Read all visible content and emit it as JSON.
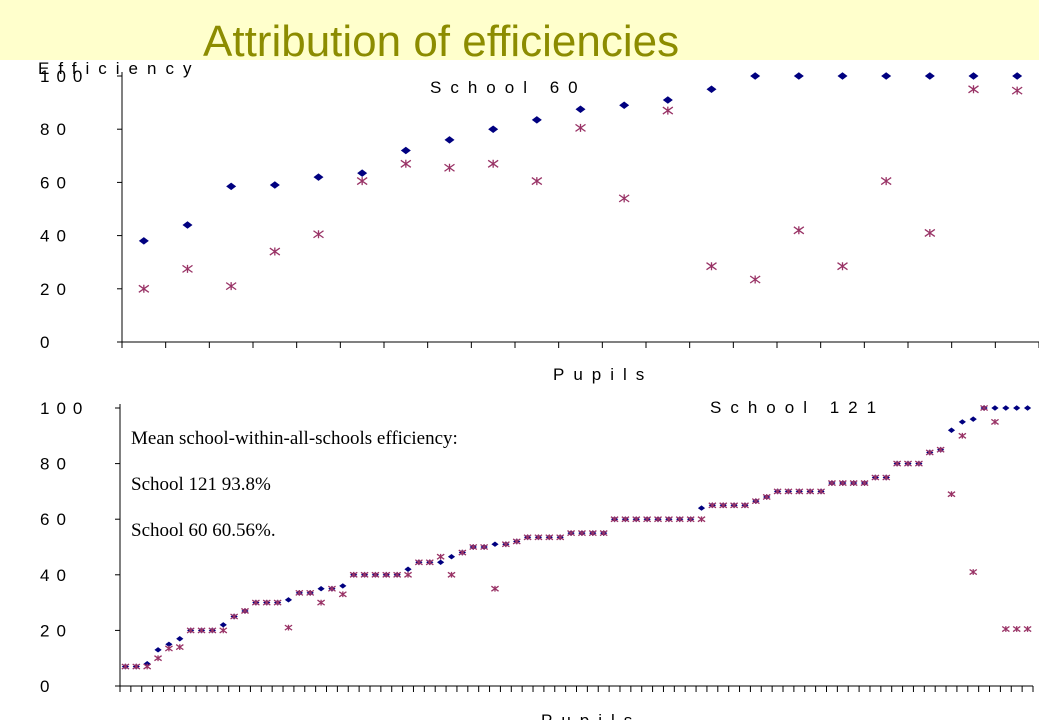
{
  "title": "Attribution of efficiencies",
  "chart_data": [
    {
      "type": "scatter",
      "title": "School 60",
      "xlabel": "Pupils",
      "ylabel": "Efficiency",
      "categories": [
        null,
        null,
        null,
        null,
        null,
        null,
        null,
        null,
        null,
        null,
        null,
        null,
        null,
        null,
        null,
        null,
        null,
        null,
        null,
        null,
        null
      ],
      "ylim": [
        0,
        100
      ],
      "yticks": [
        0,
        20,
        40,
        60,
        80,
        100
      ],
      "series": [
        {
          "color": "#000080",
          "marker": "diamond",
          "values": [
            38,
            44,
            58.5,
            59,
            62,
            63.5,
            72,
            76,
            80,
            83.5,
            87.5,
            89,
            91,
            95,
            100,
            100,
            100,
            100,
            100,
            100,
            100
          ]
        },
        {
          "color": "#993366",
          "marker": "star",
          "values": [
            20,
            27.5,
            21,
            34,
            40.5,
            60.5,
            67,
            65.5,
            67,
            60.5,
            80.5,
            54,
            87,
            28.5,
            23.5,
            42,
            28.5,
            60.5,
            41,
            95,
            94.5
          ]
        }
      ]
    },
    {
      "type": "scatter",
      "title": "School 121",
      "xlabel": "Pupils",
      "categories": [
        null,
        null,
        null,
        null,
        null,
        null,
        null,
        null,
        null,
        null,
        null,
        null,
        null,
        null,
        null,
        null,
        null,
        null,
        null,
        null,
        null,
        null,
        null,
        null,
        null,
        null,
        null,
        null,
        null,
        null,
        null,
        null,
        null,
        null,
        null,
        null,
        null,
        null,
        null,
        null,
        null,
        null,
        null,
        null,
        null,
        null,
        null,
        null,
        null,
        null,
        null,
        null,
        null,
        null,
        null,
        null,
        null,
        null,
        null,
        null,
        null,
        null,
        null,
        null,
        null,
        null,
        null,
        null,
        null,
        null,
        null,
        null,
        null,
        null,
        null,
        null,
        null,
        null,
        null,
        null,
        null,
        null,
        null,
        null
      ],
      "ylim": [
        0,
        100
      ],
      "yticks": [
        0,
        20,
        40,
        60,
        80,
        100
      ],
      "series": [
        {
          "color": "#000080",
          "marker": "diamond",
          "values": [
            7,
            7,
            8,
            13,
            15,
            17,
            20,
            20,
            20,
            22,
            25,
            27,
            30,
            30,
            30,
            31,
            33.5,
            33.5,
            35,
            35,
            36,
            40,
            40,
            40,
            40,
            40,
            42,
            44.5,
            44.5,
            44.5,
            46.5,
            48,
            50,
            50,
            51,
            51,
            52,
            53.5,
            53.5,
            53.5,
            53.5,
            55,
            55,
            55,
            55,
            60,
            60,
            60,
            60,
            60,
            60,
            60,
            60,
            64,
            65,
            65,
            65,
            65,
            66.5,
            68,
            70,
            70,
            70,
            70,
            70,
            73,
            73,
            73,
            73,
            75,
            75,
            80,
            80,
            80,
            84,
            85,
            92,
            95,
            96,
            100,
            100,
            100,
            100,
            100
          ]
        },
        {
          "color": "#993366",
          "marker": "star",
          "values": [
            7,
            7,
            7,
            10,
            13.5,
            14,
            20,
            20,
            20,
            20,
            25,
            27,
            30,
            30,
            30,
            21,
            33.5,
            33.5,
            30,
            35,
            33,
            40,
            40,
            40,
            40,
            40,
            40,
            44.5,
            44.5,
            46.5,
            40,
            48,
            50,
            50,
            35,
            51,
            52,
            53.5,
            53.5,
            53.5,
            53.5,
            55,
            55,
            55,
            55,
            60,
            60,
            60,
            60,
            60,
            60,
            60,
            60,
            60,
            65,
            65,
            65,
            65,
            66.5,
            68,
            70,
            70,
            70,
            70,
            70,
            73,
            73,
            73,
            73,
            75,
            75,
            80,
            80,
            80,
            84,
            85,
            69,
            90,
            41,
            100,
            95,
            20.5,
            20.5,
            20.5
          ]
        }
      ],
      "annotations": [
        "Mean school-within-all-schools efficiency:",
        "School 121  93.8%",
        "School 60  60.56%."
      ]
    }
  ]
}
